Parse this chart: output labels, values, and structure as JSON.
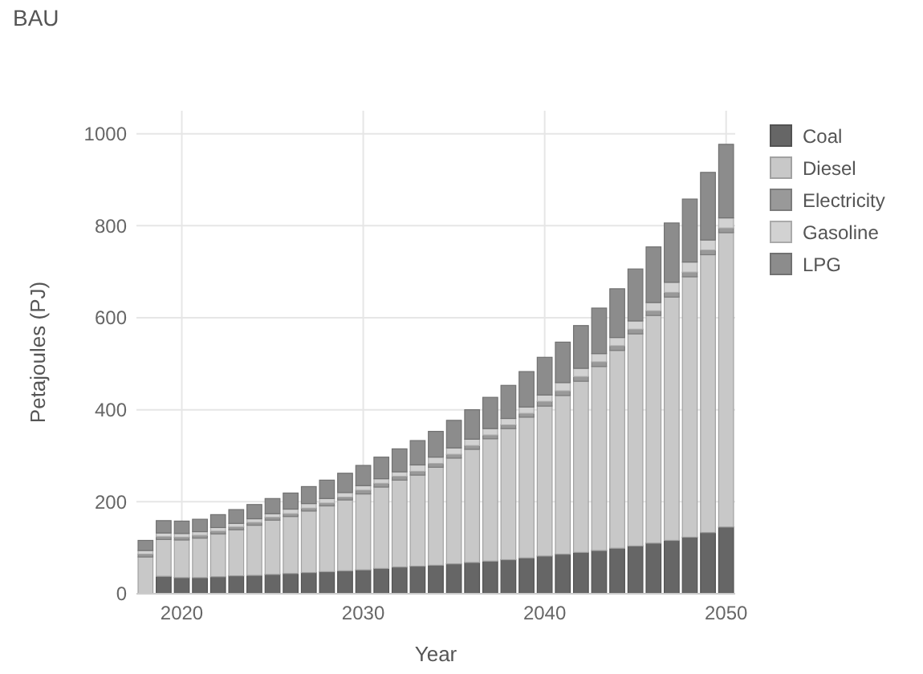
{
  "chart_data": {
    "type": "bar",
    "title": "BAU",
    "xlabel": "Year",
    "ylabel": "Petajoules (PJ)",
    "stacked": true,
    "grid": true,
    "legend": "top right",
    "x": [
      2018,
      2019,
      2020,
      2021,
      2022,
      2023,
      2024,
      2025,
      2026,
      2027,
      2028,
      2029,
      2030,
      2031,
      2032,
      2033,
      2034,
      2035,
      2036,
      2037,
      2038,
      2039,
      2040,
      2041,
      2042,
      2043,
      2044,
      2045,
      2046,
      2047,
      2048,
      2049,
      2050
    ],
    "xlim": [
      2017.5,
      2050.5
    ],
    "xticks": [
      2020,
      2030,
      2040,
      2050
    ],
    "ylim": [
      0,
      1050
    ],
    "yticks": [
      0,
      200,
      400,
      600,
      800,
      1000
    ],
    "series": [
      {
        "name": "Coal",
        "color": "#666666",
        "values": [
          0,
          38,
          35,
          35,
          37,
          39,
          40,
          42,
          44,
          46,
          48,
          50,
          52,
          55,
          58,
          60,
          62,
          65,
          68,
          71,
          74,
          78,
          82,
          86,
          90,
          94,
          99,
          104,
          110,
          116,
          123,
          133,
          145
        ]
      },
      {
        "name": "Diesel",
        "color": "#c8c8c8",
        "values": [
          80,
          80,
          82,
          86,
          93,
          100,
          109,
          118,
          124,
          134,
          143,
          154,
          165,
          177,
          189,
          198,
          213,
          230,
          246,
          266,
          285,
          306,
          326,
          345,
          372,
          400,
          430,
          461,
          495,
          529,
          566,
          604,
          640
        ]
      },
      {
        "name": "Electricity",
        "color": "#999999",
        "values": [
          6,
          6,
          6,
          6,
          6,
          6,
          6,
          6,
          6,
          6,
          6,
          6,
          8,
          8,
          8,
          8,
          8,
          8,
          8,
          8,
          8,
          8,
          10,
          10,
          10,
          10,
          10,
          10,
          10,
          10,
          10,
          10,
          10
        ]
      },
      {
        "name": "Gasoline",
        "color": "#d2d2d2",
        "values": [
          8,
          8,
          8,
          8,
          8,
          8,
          8,
          8,
          10,
          10,
          10,
          10,
          10,
          10,
          10,
          14,
          14,
          14,
          14,
          14,
          14,
          14,
          14,
          18,
          18,
          18,
          18,
          18,
          18,
          22,
          22,
          22,
          22
        ]
      },
      {
        "name": "LPG",
        "color": "#8c8c8c",
        "values": [
          22,
          27,
          27,
          27,
          28,
          30,
          31,
          33,
          35,
          37,
          40,
          42,
          44,
          47,
          50,
          53,
          56,
          60,
          64,
          68,
          72,
          77,
          82,
          88,
          93,
          99,
          106,
          113,
          121,
          129,
          137,
          147,
          160
        ]
      }
    ]
  }
}
